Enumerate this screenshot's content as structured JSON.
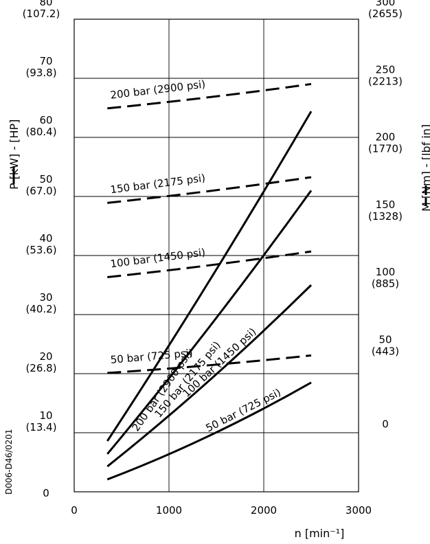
{
  "chart_data": {
    "type": "line",
    "x_axis": {
      "label": "n [min⁻¹]",
      "range": [
        0,
        3000
      ],
      "ticks": [
        "0",
        "1000",
        "2000",
        "3000"
      ]
    },
    "left_axis": {
      "label": "P [kW] - [HP]",
      "range": [
        0,
        80
      ],
      "ticks": [
        {
          "value": 0,
          "label": "0",
          "alt": ""
        },
        {
          "value": 10,
          "label": "10",
          "alt": "(13.4)"
        },
        {
          "value": 20,
          "label": "20",
          "alt": "(26.8)"
        },
        {
          "value": 30,
          "label": "30",
          "alt": "(40.2)"
        },
        {
          "value": 40,
          "label": "40",
          "alt": "(53.6)"
        },
        {
          "value": 50,
          "label": "50",
          "alt": "(67.0)"
        },
        {
          "value": 60,
          "label": "60",
          "alt": "(80.4)"
        },
        {
          "value": 70,
          "label": "70",
          "alt": "(93.8)"
        },
        {
          "value": 80,
          "label": "80",
          "alt": "(107.2)"
        }
      ]
    },
    "right_axis": {
      "label": "M [Nm] - [lbf in]",
      "range": [
        -50,
        300
      ],
      "ticks": [
        {
          "value": 0,
          "label": "0",
          "alt": ""
        },
        {
          "value": 50,
          "label": "50",
          "alt": "(443)"
        },
        {
          "value": 100,
          "label": "100",
          "alt": "(885)"
        },
        {
          "value": 150,
          "label": "150",
          "alt": "(1328)"
        },
        {
          "value": 200,
          "label": "200",
          "alt": "(1770)"
        },
        {
          "value": 250,
          "label": "250",
          "alt": "(2213)"
        },
        {
          "value": 300,
          "label": "300",
          "alt": "(2655)"
        }
      ]
    },
    "grid": true,
    "power_series": [
      {
        "name": "200 bar (2900 psi)",
        "x": [
          350,
          2500
        ],
        "y": [
          8.6,
          64.4
        ]
      },
      {
        "name": "150 bar (2175 psi)",
        "x": [
          350,
          2500
        ],
        "y": [
          6.4,
          51.0
        ]
      },
      {
        "name": "100 bar (1450 psi)",
        "x": [
          350,
          2500
        ],
        "y": [
          4.3,
          35.0
        ]
      },
      {
        "name": "50 bar (725 psi)",
        "x": [
          350,
          2500
        ],
        "y": [
          2.1,
          18.5
        ]
      }
    ],
    "torque_series": [
      {
        "name": "200 bar (2900 psi)",
        "x": [
          350,
          2500
        ],
        "y": [
          234,
          252
        ]
      },
      {
        "name": "150 bar (2175 psi)",
        "x": [
          350,
          2500
        ],
        "y": [
          164,
          183
        ]
      },
      {
        "name": "100 bar (1450 psi)",
        "x": [
          350,
          2500
        ],
        "y": [
          109,
          128
        ]
      },
      {
        "name": "50 bar (725 psi)",
        "x": [
          350,
          2500
        ],
        "y": [
          38,
          51
        ]
      }
    ],
    "legend_left": "— P [kW] - [HP]",
    "legend_right": "— — M [Nm] - [lbf in]"
  },
  "document_code": "D006-D46/0201"
}
